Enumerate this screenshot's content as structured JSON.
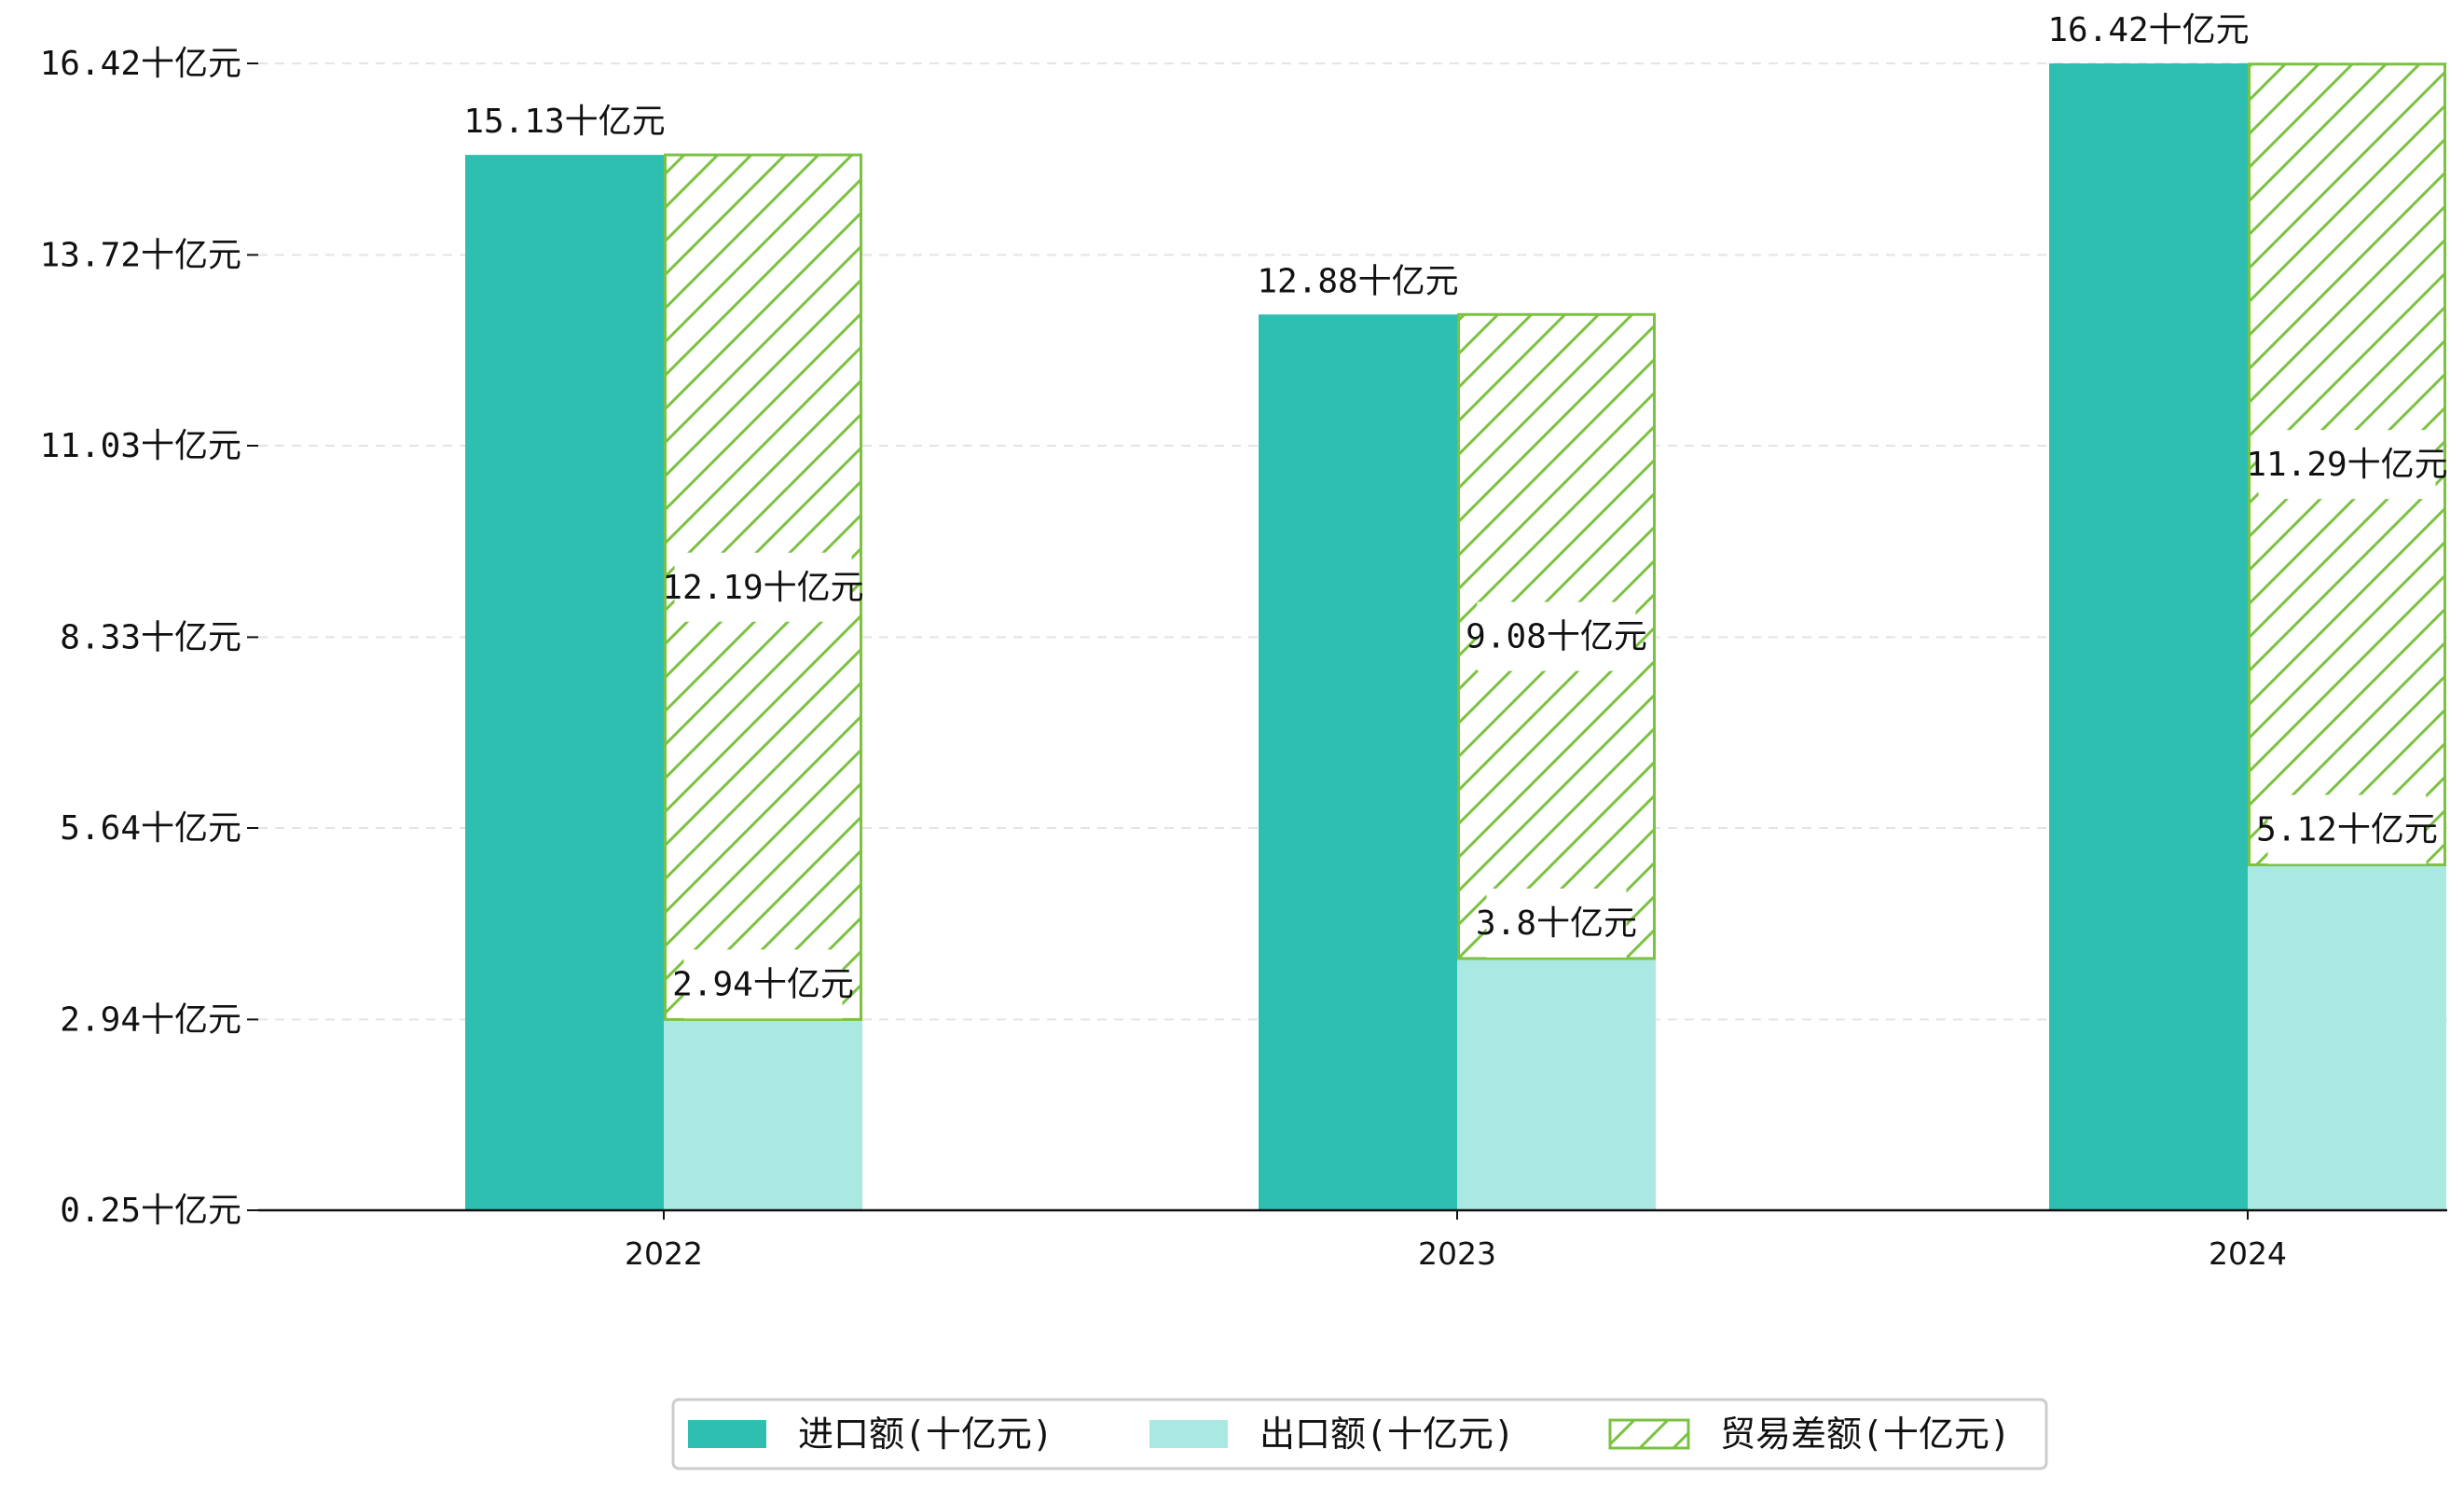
{
  "chart_data": {
    "type": "bar",
    "categories": [
      "2022",
      "2023",
      "2024"
    ],
    "series": [
      {
        "name": "进口额(十亿元)",
        "values": [
          15.13,
          12.88,
          16.42
        ],
        "labels": [
          "15.13十亿元",
          "12.88十亿元",
          "16.42十亿元"
        ],
        "color": "#2ebfb1"
      },
      {
        "name": "出口额(十亿元)",
        "values": [
          2.94,
          3.8,
          5.12
        ],
        "labels": [
          "2.94十亿元",
          "3.8十亿元",
          "5.12十亿元"
        ],
        "color": "#aae8e2"
      },
      {
        "name": "贸易差额(十亿元)",
        "values": [
          12.19,
          9.08,
          11.29
        ],
        "labels": [
          "12.19十亿元",
          "9.08十亿元",
          "11.29十亿元"
        ],
        "color": "#7cc242",
        "pattern": "hatch"
      }
    ],
    "y_ticks": [
      "0.25十亿元",
      "2.94十亿元",
      "5.64十亿元",
      "8.33十亿元",
      "11.03十亿元",
      "13.72十亿元",
      "16.42十亿元"
    ],
    "y_tick_values": [
      0.25,
      2.94,
      5.64,
      8.33,
      11.03,
      13.72,
      16.42
    ],
    "ylim": [
      0.25,
      16.42
    ],
    "grid": "horizontal dashed",
    "legend_position": "bottom-center",
    "title": "",
    "xlabel": "",
    "ylabel": ""
  }
}
